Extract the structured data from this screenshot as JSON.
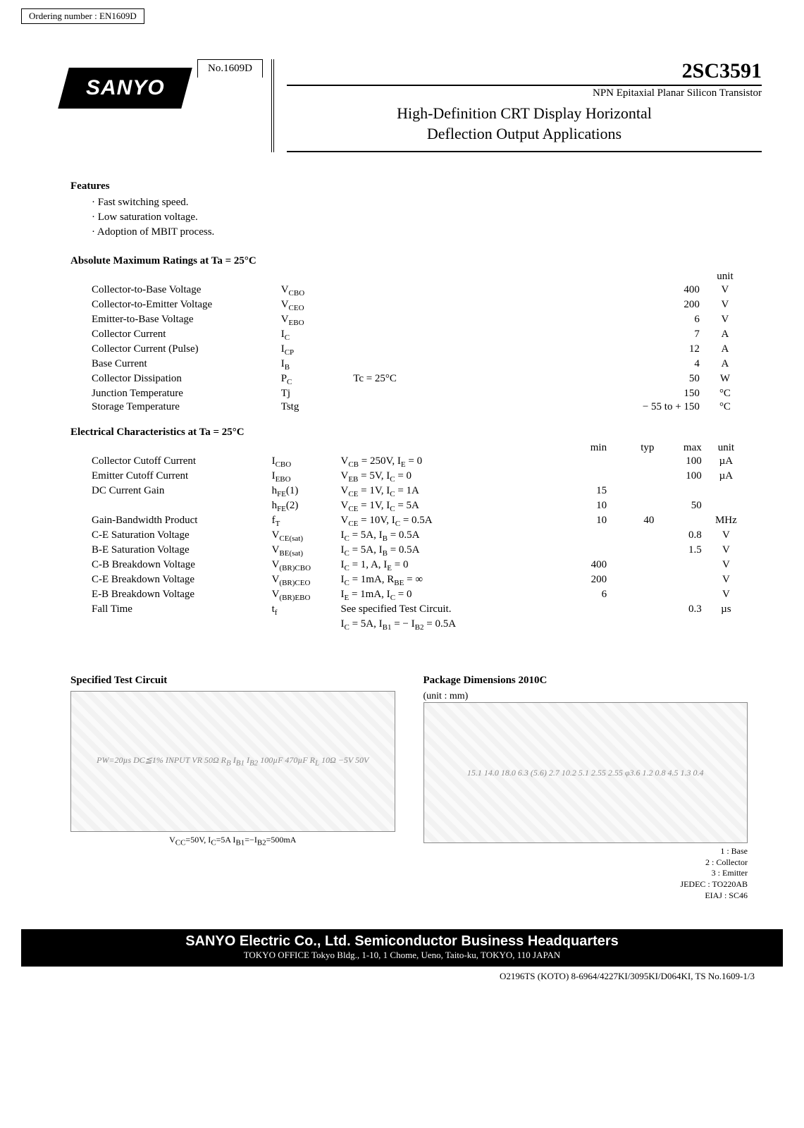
{
  "ordering_number": "Ordering number : EN1609D",
  "doc_number": "No.1609D",
  "part_number": "2SC3591",
  "type_line": "NPN Epitaxial Planar Silicon Transistor",
  "title_line1": "High-Definition CRT Display Horizontal",
  "title_line2": "Deflection Output Applications",
  "logo_text": "SANYO",
  "features_heading": "Features",
  "features": [
    "· Fast switching speed.",
    "· Low saturation voltage.",
    "· Adoption of MBIT process."
  ],
  "abs_heading": "Absolute Maximum Ratings at Ta = 25°C",
  "abs_unit_header": "unit",
  "abs_rows": [
    {
      "param": "Collector-to-Base Voltage",
      "sym": "V<sub>CBO</sub>",
      "cond": "",
      "val": "400",
      "unit": "V"
    },
    {
      "param": "Collector-to-Emitter Voltage",
      "sym": "V<sub>CEO</sub>",
      "cond": "",
      "val": "200",
      "unit": "V"
    },
    {
      "param": "Emitter-to-Base Voltage",
      "sym": "V<sub>EBO</sub>",
      "cond": "",
      "val": "6",
      "unit": "V"
    },
    {
      "param": "Collector Current",
      "sym": "I<sub>C</sub>",
      "cond": "",
      "val": "7",
      "unit": "A"
    },
    {
      "param": "Collector Current (Pulse)",
      "sym": "I<sub>CP</sub>",
      "cond": "",
      "val": "12",
      "unit": "A"
    },
    {
      "param": "Base Current",
      "sym": "I<sub>B</sub>",
      "cond": "",
      "val": "4",
      "unit": "A"
    },
    {
      "param": "Collector Dissipation",
      "sym": "P<sub>C</sub>",
      "cond": "Tc = 25°C",
      "val": "50",
      "unit": "W"
    },
    {
      "param": "Junction Temperature",
      "sym": "Tj",
      "cond": "",
      "val": "150",
      "unit": "°C"
    },
    {
      "param": "Storage Temperature",
      "sym": "Tstg",
      "cond": "",
      "val": "− 55 to + 150",
      "unit": "°C"
    }
  ],
  "elec_heading": "Electrical Characteristics at Ta = 25°C",
  "elec_headers": {
    "min": "min",
    "typ": "typ",
    "max": "max",
    "unit": "unit"
  },
  "elec_rows": [
    {
      "param": "Collector Cutoff Current",
      "sym": "I<sub>CBO</sub>",
      "cond": "V<sub>CB</sub> = 250V, I<sub>E</sub> = 0",
      "min": "",
      "typ": "",
      "max": "100",
      "unit": "µA"
    },
    {
      "param": "Emitter Cutoff Current",
      "sym": "I<sub>EBO</sub>",
      "cond": "V<sub>EB</sub> = 5V, I<sub>C</sub> = 0",
      "min": "",
      "typ": "",
      "max": "100",
      "unit": "µA"
    },
    {
      "param": "DC Current Gain",
      "sym": "h<sub>FE</sub>(1)",
      "cond": "V<sub>CE</sub> = 1V, I<sub>C</sub> = 1A",
      "min": "15",
      "typ": "",
      "max": "",
      "unit": ""
    },
    {
      "param": "",
      "sym": "h<sub>FE</sub>(2)",
      "cond": "V<sub>CE</sub> = 1V, I<sub>C</sub> = 5A",
      "min": "10",
      "typ": "",
      "max": "50",
      "unit": ""
    },
    {
      "param": "Gain-Bandwidth Product",
      "sym": "f<sub>T</sub>",
      "cond": "V<sub>CE</sub> = 10V, I<sub>C</sub> = 0.5A",
      "min": "10",
      "typ": "40",
      "max": "",
      "unit": "MHz"
    },
    {
      "param": "C-E Saturation Voltage",
      "sym": "V<sub>CE(sat)</sub>",
      "cond": "I<sub>C</sub> = 5A, I<sub>B</sub> = 0.5A",
      "min": "",
      "typ": "",
      "max": "0.8",
      "unit": "V"
    },
    {
      "param": "B-E Saturation Voltage",
      "sym": "V<sub>BE(sat)</sub>",
      "cond": "I<sub>C</sub> = 5A, I<sub>B</sub> = 0.5A",
      "min": "",
      "typ": "",
      "max": "1.5",
      "unit": "V"
    },
    {
      "param": "C-B Breakdown Voltage",
      "sym": "V<sub>(BR)CBO</sub>",
      "cond": "I<sub>C</sub> = 1, A, I<sub>E</sub> = 0",
      "min": "400",
      "typ": "",
      "max": "",
      "unit": "V"
    },
    {
      "param": "C-E Breakdown Voltage",
      "sym": "V<sub>(BR)CEO</sub>",
      "cond": "I<sub>C</sub> = 1mA, R<sub>BE</sub> = ∞",
      "min": "200",
      "typ": "",
      "max": "",
      "unit": "V"
    },
    {
      "param": "E-B Breakdown Voltage",
      "sym": "V<sub>(BR)EBO</sub>",
      "cond": "I<sub>E</sub> = 1mA, I<sub>C</sub> = 0",
      "min": "6",
      "typ": "",
      "max": "",
      "unit": "V"
    },
    {
      "param": "Fall Time",
      "sym": "t<sub>f</sub>",
      "cond": "See specified Test Circuit.",
      "min": "",
      "typ": "",
      "max": "0.3",
      "unit": "µs"
    },
    {
      "param": "",
      "sym": "",
      "cond": "I<sub>C</sub> = 5A, I<sub>B1</sub> = − I<sub>B2</sub> = 0.5A",
      "min": "",
      "typ": "",
      "max": "",
      "unit": ""
    }
  ],
  "circuit_heading": "Specified Test Circuit",
  "circuit_labels": "PW=20µs  DC≦1%   INPUT   VR   50Ω   R<sub>B</sub>   I<sub>B1</sub>   I<sub>B2</sub>   100µF   470µF   R<sub>L</sub> 10Ω   −5V   50V",
  "circuit_note": "V<sub>CC</sub>=50V, I<sub>C</sub>=5A   I<sub>B1</sub>=−I<sub>B2</sub>=500mA",
  "pkg_heading": "Package Dimensions  2010C",
  "pkg_unit": "(unit : mm)",
  "pkg_dims": "15.1  14.0  18.0  6.3  (5.6)  2.7  10.2  5.1  2.55 2.55  φ3.6  1.2  0.8  4.5  1.3  0.4",
  "pkg_pins": {
    "1": "1 : Base",
    "2": "2 : Collector",
    "3": "3 : Emitter"
  },
  "pkg_std1": "JEDEC : TO220AB",
  "pkg_std2": "EIAJ    : SC46",
  "footer_main": "SANYO Electric Co., Ltd. Semiconductor Business Headquarters",
  "footer_sub": "TOKYO OFFICE Tokyo Bldg., 1-10, 1 Chome, Ueno, Taito-ku, TOKYO, 110 JAPAN",
  "footer_code": "O2196TS (KOTO) 8-6964/4227KI/3095KI/D064KI, TS No.1609-1/3"
}
